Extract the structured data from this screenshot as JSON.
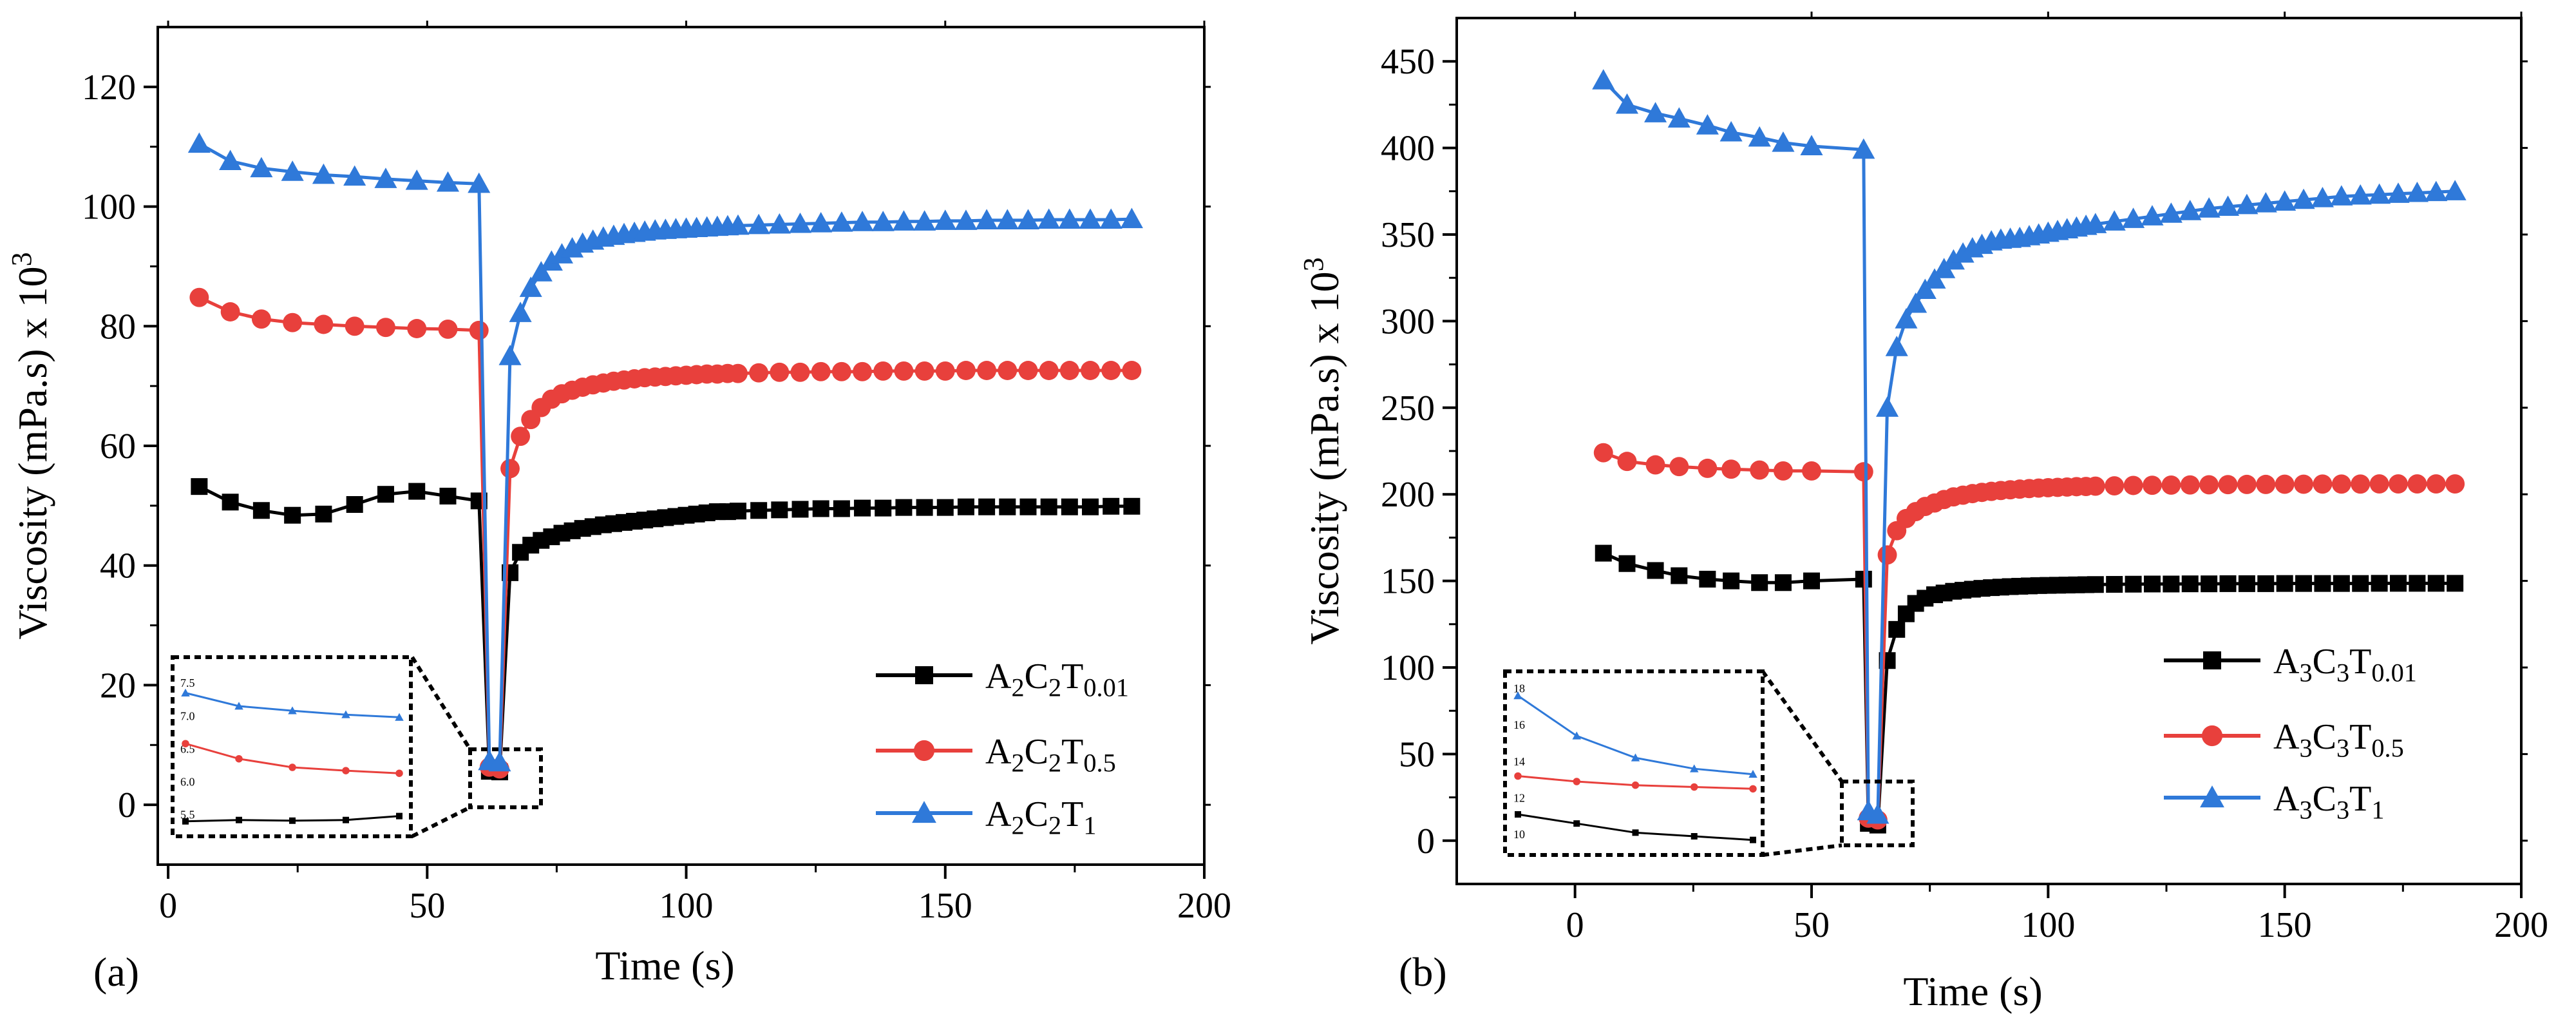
{
  "colors": {
    "black": "#000000",
    "red": "#e8403c",
    "blue": "#2f79d9"
  },
  "chart_data": [
    {
      "type": "line",
      "panel_label": "(a)",
      "xlabel": "Time (s)",
      "ylabel": "Viscosity (mPa.s) x 10",
      "ylabel_sup": "3",
      "xlim": [
        -2,
        200
      ],
      "ylim": [
        -10,
        130
      ],
      "xticks": [
        0,
        50,
        100,
        150,
        200
      ],
      "yticks": [
        0,
        20,
        40,
        60,
        80,
        100,
        120
      ],
      "series": [
        {
          "name": "A2C2T0.01",
          "label_parts": [
            "A",
            "2",
            "C",
            "2",
            "T",
            "0.01"
          ],
          "color": "#000000",
          "marker": "square",
          "x": [
            6,
            12,
            18,
            24,
            30,
            36,
            42,
            48,
            54,
            60,
            62,
            64,
            66,
            68,
            70,
            72,
            74,
            76,
            78,
            80,
            82,
            84,
            86,
            88,
            90,
            92,
            94,
            96,
            98,
            100,
            102,
            104,
            106,
            108,
            110,
            114,
            118,
            122,
            126,
            130,
            134,
            138,
            142,
            146,
            150,
            154,
            158,
            162,
            166,
            170,
            174,
            178,
            182,
            186
          ],
          "y": [
            53.2,
            50.6,
            49.2,
            48.4,
            48.6,
            50.2,
            51.9,
            52.4,
            51.6,
            50.8,
            5.6,
            5.5,
            38.8,
            42.2,
            43.4,
            44.2,
            44.8,
            45.4,
            45.8,
            46.2,
            46.5,
            46.8,
            47.0,
            47.2,
            47.4,
            47.6,
            47.8,
            48.0,
            48.2,
            48.4,
            48.6,
            48.8,
            49.0,
            49.0,
            49.1,
            49.2,
            49.3,
            49.4,
            49.5,
            49.5,
            49.6,
            49.6,
            49.7,
            49.7,
            49.7,
            49.8,
            49.8,
            49.8,
            49.8,
            49.8,
            49.8,
            49.8,
            49.9,
            49.9
          ]
        },
        {
          "name": "A2C2T0.5",
          "label_parts": [
            "A",
            "2",
            "C",
            "2",
            "T",
            "0.5"
          ],
          "color": "#e8403c",
          "marker": "circle",
          "x": [
            6,
            12,
            18,
            24,
            30,
            36,
            42,
            48,
            54,
            60,
            62,
            64,
            66,
            68,
            70,
            72,
            74,
            76,
            78,
            80,
            82,
            84,
            86,
            88,
            90,
            92,
            94,
            96,
            98,
            100,
            102,
            104,
            106,
            108,
            110,
            114,
            118,
            122,
            126,
            130,
            134,
            138,
            142,
            146,
            150,
            154,
            158,
            162,
            166,
            170,
            174,
            178,
            182,
            186
          ],
          "y": [
            84.8,
            82.4,
            81.2,
            80.6,
            80.3,
            80.0,
            79.8,
            79.6,
            79.5,
            79.3,
            6.3,
            6.0,
            56.2,
            61.6,
            64.4,
            66.4,
            67.8,
            68.7,
            69.3,
            69.8,
            70.2,
            70.5,
            70.8,
            71.0,
            71.2,
            71.4,
            71.5,
            71.6,
            71.7,
            71.8,
            71.9,
            72.0,
            72.0,
            72.1,
            72.1,
            72.2,
            72.3,
            72.3,
            72.4,
            72.4,
            72.4,
            72.5,
            72.5,
            72.5,
            72.5,
            72.6,
            72.6,
            72.6,
            72.6,
            72.6,
            72.6,
            72.6,
            72.6,
            72.6
          ]
        },
        {
          "name": "A2C2T1",
          "label_parts": [
            "A",
            "2",
            "C",
            "2",
            "T",
            "1"
          ],
          "color": "#2f79d9",
          "marker": "triangle",
          "x": [
            6,
            12,
            18,
            24,
            30,
            36,
            42,
            48,
            54,
            60,
            62,
            64,
            66,
            68,
            70,
            72,
            74,
            76,
            78,
            80,
            82,
            84,
            86,
            88,
            90,
            92,
            94,
            96,
            98,
            100,
            102,
            104,
            106,
            108,
            110,
            114,
            118,
            122,
            126,
            130,
            134,
            138,
            142,
            146,
            150,
            154,
            158,
            162,
            166,
            170,
            174,
            178,
            182,
            186
          ],
          "y": [
            110.5,
            107.6,
            106.4,
            105.8,
            105.3,
            105.0,
            104.6,
            104.3,
            104.0,
            103.8,
            7.3,
            7.1,
            75.0,
            82.2,
            86.4,
            89.0,
            90.8,
            92.0,
            93.0,
            93.8,
            94.3,
            94.8,
            95.1,
            95.4,
            95.6,
            95.8,
            96.0,
            96.1,
            96.2,
            96.3,
            96.4,
            96.5,
            96.6,
            96.7,
            96.8,
            96.9,
            97.0,
            97.1,
            97.2,
            97.3,
            97.4,
            97.4,
            97.5,
            97.5,
            97.6,
            97.6,
            97.7,
            97.7,
            97.7,
            97.8,
            97.8,
            97.8,
            97.8,
            97.9
          ]
        }
      ],
      "inset": {
        "yticks": [
          "7.5",
          "7.0",
          "6.5",
          "6.0",
          "5.5"
        ],
        "series": [
          {
            "color": "#2f79d9",
            "marker": "triangle",
            "values": [
              7.35,
              7.15,
              7.08,
              7.02,
              6.98
            ]
          },
          {
            "color": "#e8403c",
            "marker": "circle",
            "values": [
              6.58,
              6.35,
              6.22,
              6.17,
              6.13
            ]
          },
          {
            "color": "#000000",
            "marker": "square",
            "values": [
              5.4,
              5.42,
              5.41,
              5.42,
              5.48
            ]
          }
        ]
      }
    },
    {
      "type": "line",
      "panel_label": "(b)",
      "xlabel": "Time (s)",
      "ylabel": "Viscosity (mPa.s) x 10",
      "ylabel_sup": "3",
      "xlim": [
        -25,
        200
      ],
      "ylim": [
        -25,
        475
      ],
      "xticks": [
        0,
        50,
        100,
        150,
        200
      ],
      "yticks": [
        0,
        50,
        100,
        150,
        200,
        250,
        300,
        350,
        400,
        450
      ],
      "series": [
        {
          "name": "A3C3T0.01",
          "label_parts": [
            "A",
            "3",
            "C",
            "3",
            "T",
            "0.01"
          ],
          "color": "#000000",
          "marker": "square",
          "x": [
            6,
            11,
            17,
            22,
            28,
            33,
            39,
            44,
            50,
            61,
            62,
            64,
            66,
            68,
            70,
            72,
            74,
            76,
            78,
            80,
            82,
            84,
            86,
            88,
            90,
            92,
            94,
            96,
            98,
            100,
            102,
            104,
            106,
            108,
            110,
            114,
            118,
            122,
            126,
            130,
            134,
            138,
            142,
            146,
            150,
            154,
            158,
            162,
            166,
            170,
            174,
            178,
            182,
            186
          ],
          "y": [
            166,
            160,
            156,
            153,
            151,
            150,
            149,
            149,
            150,
            151,
            10,
            9,
            104,
            122,
            131,
            137,
            140,
            142,
            143,
            144,
            144.6,
            145.2,
            145.7,
            146.1,
            146.4,
            146.7,
            146.9,
            147.1,
            147.3,
            147.4,
            147.5,
            147.6,
            147.7,
            147.8,
            147.9,
            148,
            148.1,
            148.2,
            148.2,
            148.3,
            148.3,
            148.4,
            148.4,
            148.4,
            148.5,
            148.5,
            148.5,
            148.5,
            148.5,
            148.6,
            148.6,
            148.6,
            148.6,
            148.6
          ]
        },
        {
          "name": "A3C3T0.5",
          "label_parts": [
            "A",
            "3",
            "C",
            "3",
            "T",
            "0.5"
          ],
          "color": "#e8403c",
          "marker": "circle",
          "x": [
            6,
            11,
            17,
            22,
            28,
            33,
            39,
            44,
            50,
            61,
            62,
            64,
            66,
            68,
            70,
            72,
            74,
            76,
            78,
            80,
            82,
            84,
            86,
            88,
            90,
            92,
            94,
            96,
            98,
            100,
            102,
            104,
            106,
            108,
            110,
            114,
            118,
            122,
            126,
            130,
            134,
            138,
            142,
            146,
            150,
            154,
            158,
            162,
            166,
            170,
            174,
            178,
            182,
            186
          ],
          "y": [
            224,
            219,
            217,
            216,
            215,
            214.5,
            214,
            213.5,
            213.5,
            213,
            13,
            12,
            165,
            179,
            186,
            190,
            193,
            195,
            197,
            198.5,
            199.5,
            200.4,
            201.1,
            201.7,
            202.2,
            202.6,
            203,
            203.3,
            203.6,
            203.8,
            204,
            204.2,
            204.4,
            204.5,
            204.7,
            204.9,
            205.1,
            205.2,
            205.3,
            205.4,
            205.5,
            205.6,
            205.7,
            205.7,
            205.8,
            205.8,
            205.9,
            205.9,
            205.9,
            206,
            206,
            206,
            206,
            206
          ]
        },
        {
          "name": "A3C3T1",
          "label_parts": [
            "A",
            "3",
            "C",
            "3",
            "T",
            "1"
          ],
          "color": "#2f79d9",
          "marker": "triangle",
          "x": [
            6,
            11,
            17,
            22,
            28,
            33,
            39,
            44,
            50,
            61,
            62,
            64,
            66,
            68,
            70,
            72,
            74,
            76,
            78,
            80,
            82,
            84,
            86,
            88,
            90,
            92,
            94,
            96,
            98,
            100,
            102,
            104,
            106,
            108,
            110,
            114,
            118,
            122,
            126,
            130,
            134,
            138,
            142,
            146,
            150,
            154,
            158,
            162,
            166,
            170,
            174,
            178,
            182,
            186
          ],
          "y": [
            439,
            425,
            420,
            417,
            413,
            409,
            406,
            403,
            401,
            399,
            17,
            15,
            250,
            285,
            301,
            310,
            318,
            324,
            330,
            335,
            339,
            342,
            344,
            346,
            347,
            347.5,
            348,
            349,
            350,
            351,
            352,
            353,
            354,
            355,
            356,
            357.5,
            359,
            360.5,
            362,
            363.5,
            365,
            366,
            367,
            368,
            369,
            370,
            371,
            372,
            372.5,
            373,
            373.5,
            374,
            374.5,
            375
          ]
        }
      ],
      "inset": {
        "yticks": [
          "18",
          "16",
          "14",
          "12",
          "10"
        ],
        "series": [
          {
            "color": "#2f79d9",
            "marker": "triangle",
            "values": [
              17.6,
              15.4,
              14.2,
              13.6,
              13.3
            ]
          },
          {
            "color": "#e8403c",
            "marker": "circle",
            "values": [
              13.2,
              12.9,
              12.7,
              12.6,
              12.5
            ]
          },
          {
            "color": "#000000",
            "marker": "square",
            "values": [
              11.1,
              10.6,
              10.1,
              9.9,
              9.7
            ]
          }
        ]
      }
    }
  ]
}
